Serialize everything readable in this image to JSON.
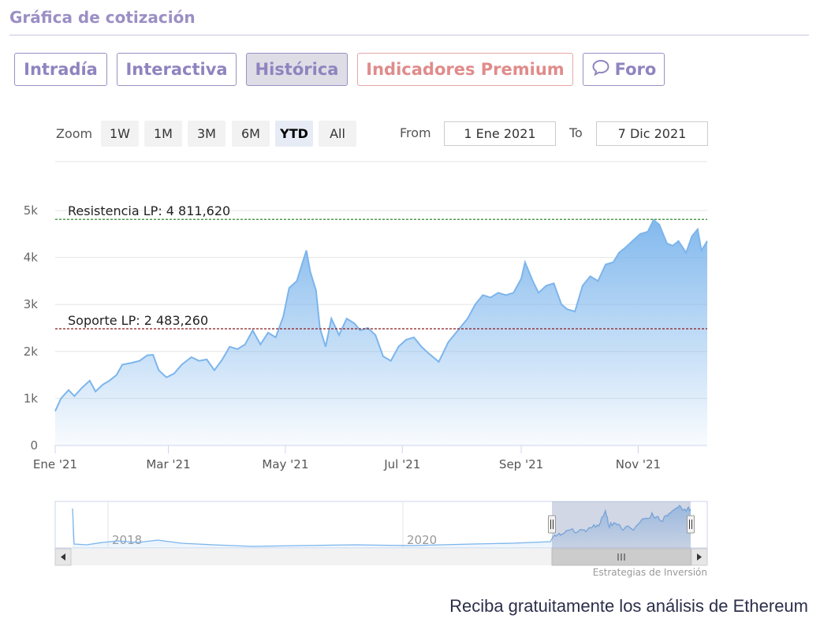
{
  "header": {
    "title": "Gráfica de cotización"
  },
  "tabs": [
    {
      "label": "Intradía"
    },
    {
      "label": "Interactiva"
    },
    {
      "label": "Histórica"
    },
    {
      "label": "Indicadores Premium"
    },
    {
      "label": "Foro"
    }
  ],
  "zoom": {
    "label": "Zoom",
    "options": [
      "1W",
      "1M",
      "3M",
      "6M",
      "YTD",
      "All"
    ],
    "selected": "YTD"
  },
  "range": {
    "from_label": "From",
    "from_value": "1 Ene 2021",
    "to_label": "To",
    "to_value": "7 Dic 2021"
  },
  "credits": "Estrategias de Inversión",
  "footer": "Reciba gratuitamente los análisis de Ethereum",
  "colors": {
    "accent": "#8f84bf",
    "premium": "#e08b8b",
    "series": "#7cb5ec",
    "resistance": "#2e8b2e",
    "support": "#8b1a1a"
  },
  "chart_data": {
    "type": "area",
    "title": "",
    "xlabel": "",
    "ylabel": "",
    "ylim": [
      0,
      5000
    ],
    "yticks": [
      0,
      1000,
      2000,
      3000,
      4000,
      5000
    ],
    "ytick_labels": [
      "0",
      "1k",
      "2k",
      "3k",
      "4k",
      "5k"
    ],
    "xticks": [
      "2021-01-01",
      "2021-03-01",
      "2021-05-01",
      "2021-07-01",
      "2021-09-01",
      "2021-11-01"
    ],
    "xtick_labels": [
      "Ene '21",
      "Mar '21",
      "May '21",
      "Jul '21",
      "Sep '21",
      "Nov '21"
    ],
    "xlim": [
      "2021-01-01",
      "2021-12-07"
    ],
    "grid": true,
    "series": [
      {
        "values": [
          [
            "2021-01-01",
            730
          ],
          [
            "2021-01-04",
            1000
          ],
          [
            "2021-01-08",
            1180
          ],
          [
            "2021-01-11",
            1050
          ],
          [
            "2021-01-15",
            1230
          ],
          [
            "2021-01-19",
            1380
          ],
          [
            "2021-01-22",
            1150
          ],
          [
            "2021-01-26",
            1300
          ],
          [
            "2021-01-29",
            1370
          ],
          [
            "2021-02-02",
            1500
          ],
          [
            "2021-02-05",
            1720
          ],
          [
            "2021-02-10",
            1760
          ],
          [
            "2021-02-14",
            1800
          ],
          [
            "2021-02-18",
            1920
          ],
          [
            "2021-02-21",
            1930
          ],
          [
            "2021-02-24",
            1600
          ],
          [
            "2021-02-28",
            1450
          ],
          [
            "2021-03-04",
            1530
          ],
          [
            "2021-03-08",
            1720
          ],
          [
            "2021-03-13",
            1880
          ],
          [
            "2021-03-17",
            1800
          ],
          [
            "2021-03-21",
            1830
          ],
          [
            "2021-03-25",
            1600
          ],
          [
            "2021-03-29",
            1820
          ],
          [
            "2021-04-02",
            2100
          ],
          [
            "2021-04-06",
            2050
          ],
          [
            "2021-04-10",
            2150
          ],
          [
            "2021-04-14",
            2450
          ],
          [
            "2021-04-18",
            2150
          ],
          [
            "2021-04-22",
            2400
          ],
          [
            "2021-04-26",
            2300
          ],
          [
            "2021-04-30",
            2750
          ],
          [
            "2021-05-03",
            3350
          ],
          [
            "2021-05-07",
            3500
          ],
          [
            "2021-05-10",
            3900
          ],
          [
            "2021-05-12",
            4150
          ],
          [
            "2021-05-14",
            3700
          ],
          [
            "2021-05-17",
            3300
          ],
          [
            "2021-05-19",
            2500
          ],
          [
            "2021-05-22",
            2100
          ],
          [
            "2021-05-25",
            2700
          ],
          [
            "2021-05-29",
            2350
          ],
          [
            "2021-06-02",
            2700
          ],
          [
            "2021-06-06",
            2600
          ],
          [
            "2021-06-09",
            2450
          ],
          [
            "2021-06-13",
            2500
          ],
          [
            "2021-06-17",
            2350
          ],
          [
            "2021-06-21",
            1900
          ],
          [
            "2021-06-25",
            1800
          ],
          [
            "2021-06-29",
            2100
          ],
          [
            "2021-07-03",
            2250
          ],
          [
            "2021-07-07",
            2300
          ],
          [
            "2021-07-11",
            2100
          ],
          [
            "2021-07-15",
            1950
          ],
          [
            "2021-07-20",
            1780
          ],
          [
            "2021-07-25",
            2200
          ],
          [
            "2021-07-30",
            2450
          ],
          [
            "2021-08-04",
            2700
          ],
          [
            "2021-08-08",
            3000
          ],
          [
            "2021-08-12",
            3200
          ],
          [
            "2021-08-16",
            3150
          ],
          [
            "2021-08-20",
            3250
          ],
          [
            "2021-08-24",
            3200
          ],
          [
            "2021-08-28",
            3250
          ],
          [
            "2021-09-01",
            3550
          ],
          [
            "2021-09-03",
            3900
          ],
          [
            "2021-09-07",
            3500
          ],
          [
            "2021-09-10",
            3250
          ],
          [
            "2021-09-14",
            3400
          ],
          [
            "2021-09-18",
            3450
          ],
          [
            "2021-09-22",
            3000
          ],
          [
            "2021-09-25",
            2900
          ],
          [
            "2021-09-29",
            2850
          ],
          [
            "2021-10-03",
            3400
          ],
          [
            "2021-10-07",
            3600
          ],
          [
            "2021-10-11",
            3500
          ],
          [
            "2021-10-15",
            3850
          ],
          [
            "2021-10-19",
            3900
          ],
          [
            "2021-10-22",
            4100
          ],
          [
            "2021-10-25",
            4200
          ],
          [
            "2021-10-29",
            4350
          ],
          [
            "2021-11-02",
            4500
          ],
          [
            "2021-11-06",
            4550
          ],
          [
            "2021-11-09",
            4800
          ],
          [
            "2021-11-12",
            4700
          ],
          [
            "2021-11-16",
            4300
          ],
          [
            "2021-11-19",
            4250
          ],
          [
            "2021-11-22",
            4350
          ],
          [
            "2021-11-26",
            4100
          ],
          [
            "2021-11-29",
            4450
          ],
          [
            "2021-12-02",
            4600
          ],
          [
            "2021-12-04",
            4150
          ],
          [
            "2021-12-07",
            4350
          ]
        ]
      }
    ],
    "annotations": [
      {
        "label": "Resistencia LP: 4 811,620",
        "value": 4811.62
      },
      {
        "label": "Soporte LP: 2 483,260",
        "value": 2483.26
      }
    ],
    "navigator": {
      "labels": [
        "2018",
        "2020"
      ]
    }
  }
}
